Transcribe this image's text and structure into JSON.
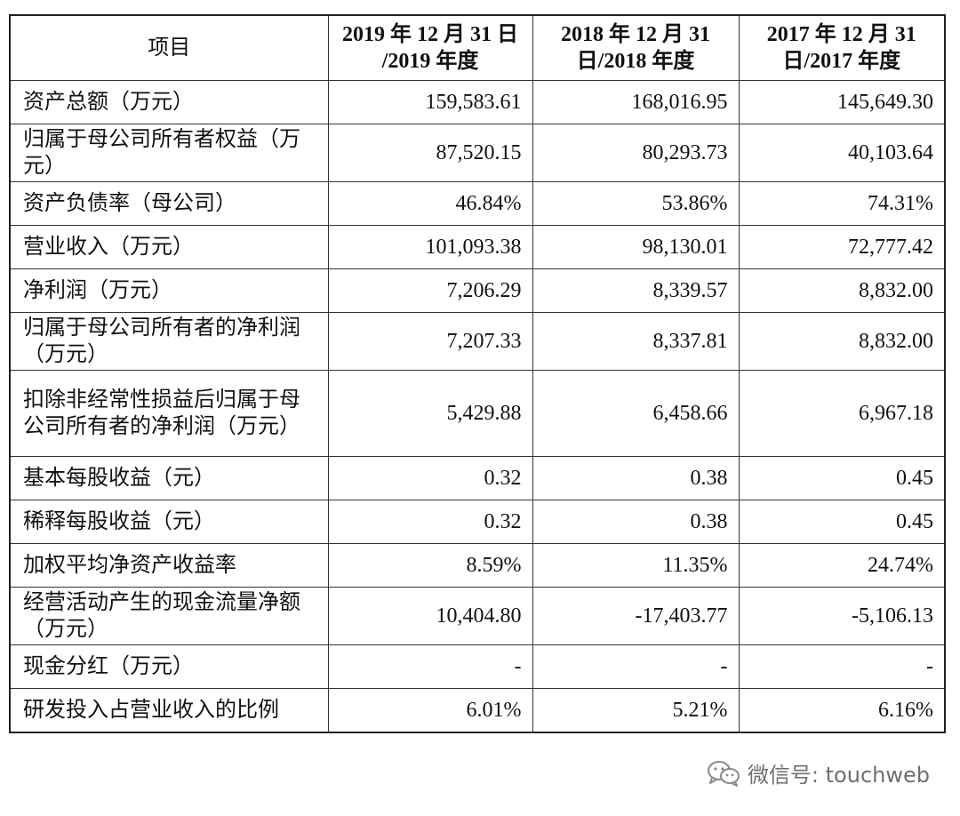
{
  "table": {
    "headers": {
      "item": "项目",
      "col2019": "2019 年 12 月 31 日 /2019 年度",
      "col2018": "2018 年 12 月 31 日/2018 年度",
      "col2017": "2017 年 12 月 31 日/2017 年度"
    },
    "rows": [
      {
        "label": "资产总额（万元）",
        "v2019": "159,583.61",
        "v2018": "168,016.95",
        "v2017": "145,649.30"
      },
      {
        "label": "归属于母公司所有者权益（万元）",
        "v2019": "87,520.15",
        "v2018": "80,293.73",
        "v2017": "40,103.64"
      },
      {
        "label": "资产负债率（母公司）",
        "v2019": "46.84%",
        "v2018": "53.86%",
        "v2017": "74.31%"
      },
      {
        "label": "营业收入（万元）",
        "v2019": "101,093.38",
        "v2018": "98,130.01",
        "v2017": "72,777.42"
      },
      {
        "label": "净利润（万元）",
        "v2019": "7,206.29",
        "v2018": "8,339.57",
        "v2017": "8,832.00"
      },
      {
        "label": "归属于母公司所有者的净利润（万元）",
        "v2019": "7,207.33",
        "v2018": "8,337.81",
        "v2017": "8,832.00"
      },
      {
        "label": "扣除非经常性损益后归属于母公司所有者的净利润（万元）",
        "v2019": "5,429.88",
        "v2018": "6,458.66",
        "v2017": "6,967.18"
      },
      {
        "label": "基本每股收益（元）",
        "v2019": "0.32",
        "v2018": "0.38",
        "v2017": "0.45"
      },
      {
        "label": "稀释每股收益（元）",
        "v2019": "0.32",
        "v2018": "0.38",
        "v2017": "0.45"
      },
      {
        "label": "加权平均净资产收益率",
        "v2019": "8.59%",
        "v2018": "11.35%",
        "v2017": "24.74%"
      },
      {
        "label": "经营活动产生的现金流量净额（万元）",
        "v2019": "10,404.80",
        "v2018": "-17,403.77",
        "v2017": "-5,106.13"
      },
      {
        "label": "现金分红（万元）",
        "v2019": "-",
        "v2018": "-",
        "v2017": "-"
      },
      {
        "label": "研发投入占营业收入的比例",
        "v2019": "6.01%",
        "v2018": "5.21%",
        "v2017": "6.16%"
      }
    ]
  },
  "watermark": {
    "icon": "wechat-icon",
    "text": "微信号: touchweb"
  }
}
